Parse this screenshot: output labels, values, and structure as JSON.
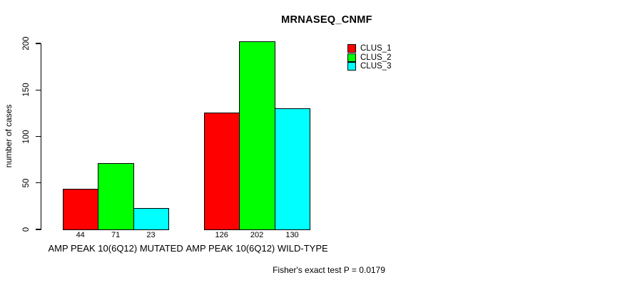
{
  "chart_data": {
    "type": "bar",
    "title": "MRNASEQ_CNMF",
    "xlabel": "",
    "ylabel": "number of cases",
    "ylim": [
      0,
      200
    ],
    "yticks": [
      0,
      50,
      100,
      150,
      200
    ],
    "grid": false,
    "legend_position": "top-right",
    "categories": [
      "AMP PEAK 10(6Q12) MUTATED",
      "AMP PEAK 10(6Q12) WILD-TYPE"
    ],
    "series": [
      {
        "name": "CLUS_1",
        "color": "#FF0000",
        "values": [
          44,
          126
        ]
      },
      {
        "name": "CLUS_2",
        "color": "#00FF00",
        "values": [
          71,
          202
        ]
      },
      {
        "name": "CLUS_3",
        "color": "#00FFFF",
        "values": [
          23,
          130
        ]
      }
    ],
    "bar_value_labels": [
      [
        44,
        71,
        23
      ],
      [
        126,
        202,
        130
      ]
    ],
    "annotation": "Fisher's exact test P = 0.0179"
  }
}
